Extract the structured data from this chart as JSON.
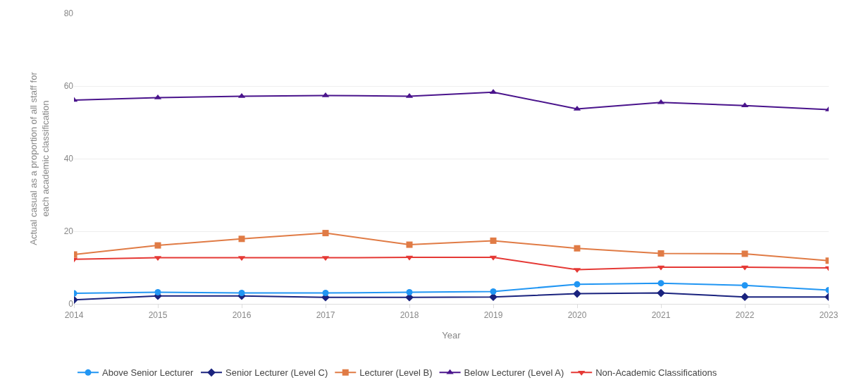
{
  "chart_data": {
    "type": "line",
    "xlabel": "Year",
    "ylabel": "Actual casual as a proportion of all staff for each academic classification",
    "x": [
      2014,
      2015,
      2016,
      2017,
      2018,
      2019,
      2020,
      2021,
      2022,
      2023
    ],
    "series": [
      {
        "name": "Above Senior Lecturer",
        "color": "#2196f3",
        "marker": "circle",
        "values": [
          2.9,
          3.2,
          3.0,
          3.0,
          3.2,
          3.4,
          5.4,
          5.7,
          5.1,
          3.8
        ]
      },
      {
        "name": "Senior Lecturer (Level C)",
        "color": "#1a237e",
        "marker": "diamond",
        "values": [
          1.1,
          2.2,
          2.2,
          1.8,
          1.8,
          1.9,
          2.8,
          3.0,
          1.9,
          1.9
        ]
      },
      {
        "name": "Lecturer (Level B)",
        "color": "#e07b45",
        "marker": "square",
        "values": [
          13.6,
          16.1,
          17.9,
          19.5,
          16.3,
          17.4,
          15.3,
          13.9,
          13.8,
          11.9
        ]
      },
      {
        "name": "Below Lecturer (Level A)",
        "color": "#4a148c",
        "marker": "triangle",
        "values": [
          56.1,
          56.8,
          57.2,
          57.4,
          57.2,
          58.3,
          53.7,
          55.5,
          54.6,
          53.5
        ]
      },
      {
        "name": "Non-Academic Classifications",
        "color": "#e53935",
        "marker": "triangle-down",
        "values": [
          12.3,
          12.7,
          12.7,
          12.7,
          12.8,
          12.8,
          9.4,
          10.1,
          10.1,
          9.9
        ]
      }
    ],
    "xlim": [
      2014,
      2023
    ],
    "xticks": [
      2014,
      2015,
      2016,
      2017,
      2018,
      2019,
      2020,
      2021,
      2022,
      2023
    ],
    "ylim": [
      0,
      80
    ],
    "yticks": [
      0,
      20,
      40,
      60,
      80
    ],
    "grid": "y",
    "legend": "bottom"
  }
}
